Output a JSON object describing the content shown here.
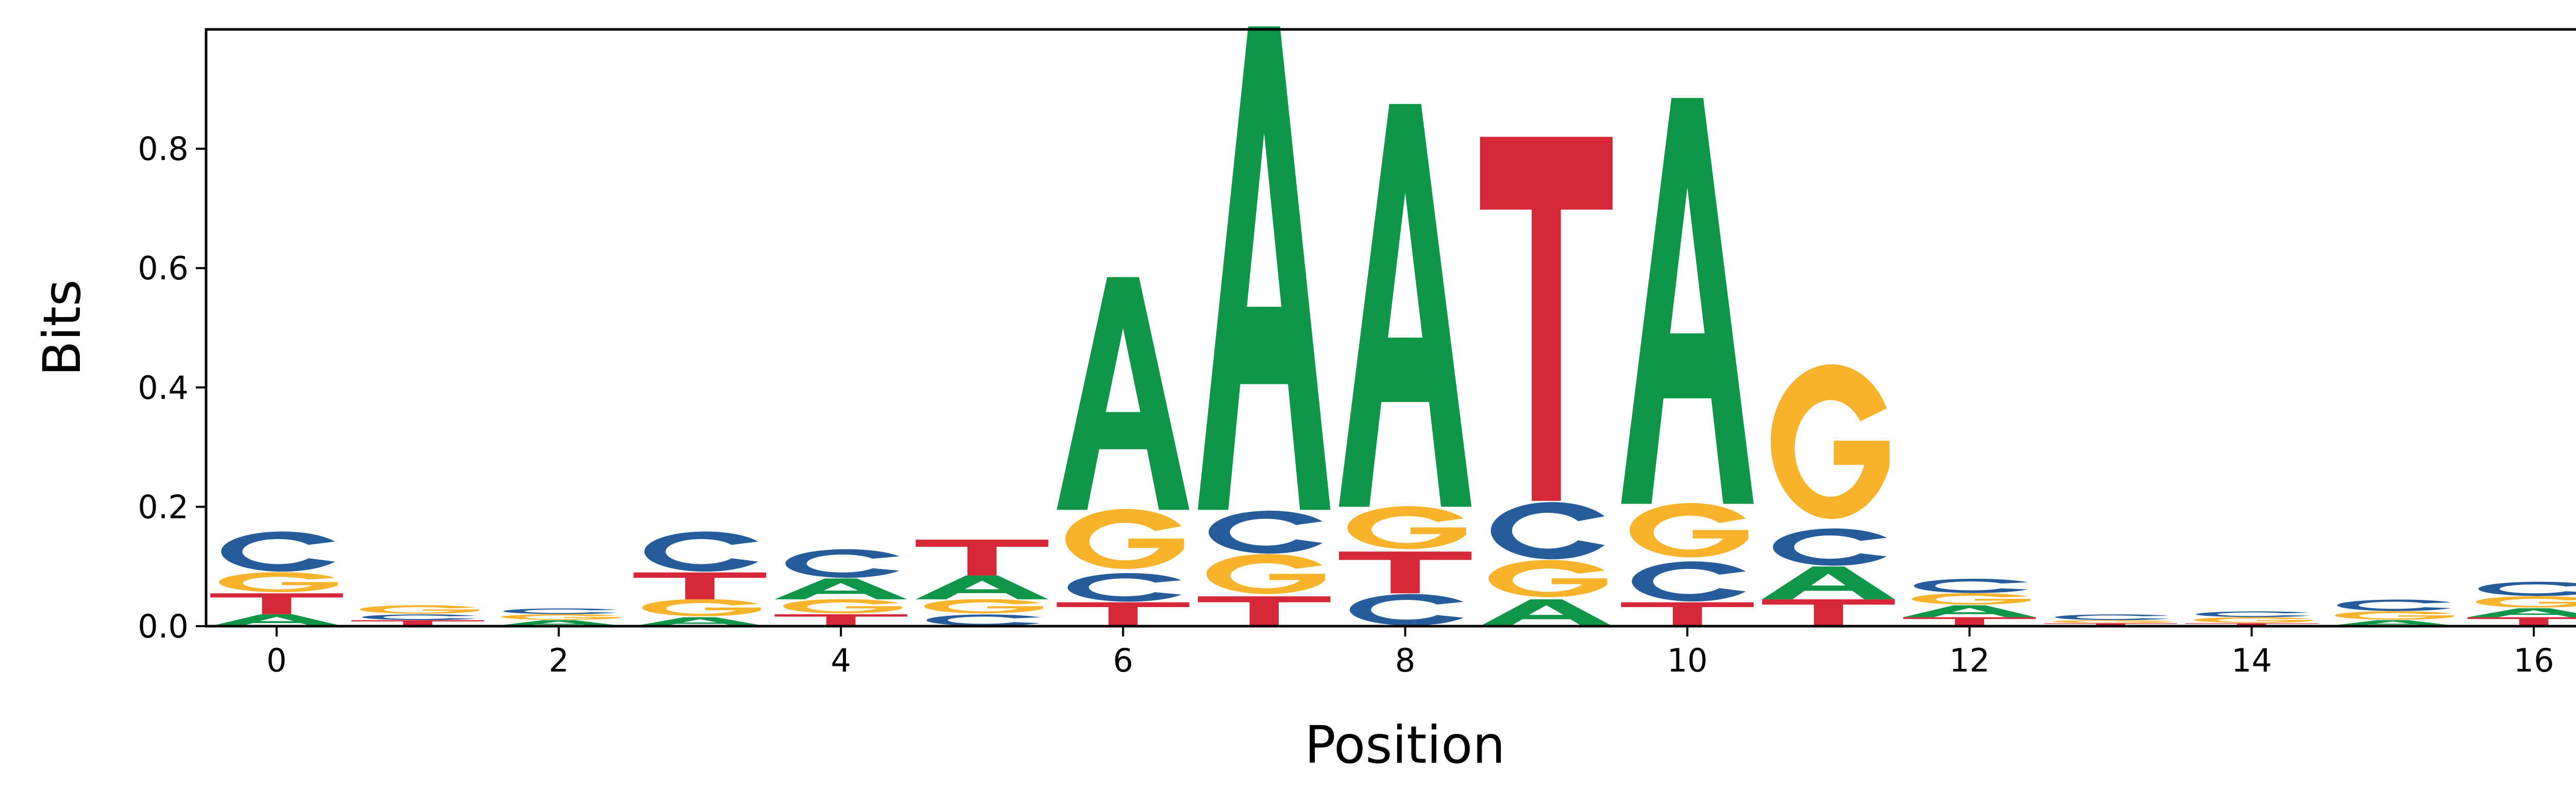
{
  "chart_data": {
    "type": "sequence_logo",
    "title": "",
    "xlabel": "Position",
    "ylabel": "Bits",
    "xlim": [
      -0.5,
      16.5
    ],
    "ylim": [
      0,
      1.0
    ],
    "x_ticks": [
      "0",
      "2",
      "4",
      "6",
      "8",
      "10",
      "12",
      "14",
      "16"
    ],
    "y_ticks": [
      "0.0",
      "0.2",
      "0.4",
      "0.6",
      "0.8"
    ],
    "grid": false,
    "colors": {
      "A": "#109648",
      "C": "#255C99",
      "G": "#F7B32B",
      "T": "#D62839"
    },
    "positions": [
      0,
      1,
      2,
      3,
      4,
      5,
      6,
      7,
      8,
      9,
      10,
      11,
      12,
      13,
      14,
      15,
      16
    ],
    "stacks": [
      [
        {
          "base": "A",
          "bits": 0.02
        },
        {
          "base": "T",
          "bits": 0.035
        },
        {
          "base": "G",
          "bits": 0.035
        },
        {
          "base": "C",
          "bits": 0.07
        }
      ],
      [
        {
          "base": "T",
          "bits": 0.01
        },
        {
          "base": "C",
          "bits": 0.01
        },
        {
          "base": "G",
          "bits": 0.015
        }
      ],
      [
        {
          "base": "A",
          "bits": 0.01
        },
        {
          "base": "G",
          "bits": 0.01
        },
        {
          "base": "C",
          "bits": 0.01
        }
      ],
      [
        {
          "base": "A",
          "bits": 0.015
        },
        {
          "base": "G",
          "bits": 0.03
        },
        {
          "base": "T",
          "bits": 0.045
        },
        {
          "base": "C",
          "bits": 0.07
        }
      ],
      [
        {
          "base": "T",
          "bits": 0.02
        },
        {
          "base": "G",
          "bits": 0.025
        },
        {
          "base": "A",
          "bits": 0.035
        },
        {
          "base": "C",
          "bits": 0.05
        }
      ],
      [
        {
          "base": "C",
          "bits": 0.02
        },
        {
          "base": "G",
          "bits": 0.025
        },
        {
          "base": "A",
          "bits": 0.04
        },
        {
          "base": "T",
          "bits": 0.06
        }
      ],
      [
        {
          "base": "T",
          "bits": 0.04
        },
        {
          "base": "C",
          "bits": 0.05
        },
        {
          "base": "G",
          "bits": 0.105
        },
        {
          "base": "A",
          "bits": 0.39
        }
      ],
      [
        {
          "base": "T",
          "bits": 0.05
        },
        {
          "base": "G",
          "bits": 0.07
        },
        {
          "base": "C",
          "bits": 0.075
        },
        {
          "base": "A",
          "bits": 0.81
        }
      ],
      [
        {
          "base": "C",
          "bits": 0.055
        },
        {
          "base": "T",
          "bits": 0.07
        },
        {
          "base": "G",
          "bits": 0.075
        },
        {
          "base": "A",
          "bits": 0.675
        }
      ],
      [
        {
          "base": "A",
          "bits": 0.045
        },
        {
          "base": "G",
          "bits": 0.065
        },
        {
          "base": "C",
          "bits": 0.1
        },
        {
          "base": "T",
          "bits": 0.61
        }
      ],
      [
        {
          "base": "T",
          "bits": 0.04
        },
        {
          "base": "C",
          "bits": 0.07
        },
        {
          "base": "G",
          "bits": 0.095
        },
        {
          "base": "A",
          "bits": 0.68
        }
      ],
      [
        {
          "base": "T",
          "bits": 0.045
        },
        {
          "base": "A",
          "bits": 0.055
        },
        {
          "base": "C",
          "bits": 0.065
        },
        {
          "base": "G",
          "bits": 0.27
        }
      ],
      [
        {
          "base": "T",
          "bits": 0.015
        },
        {
          "base": "A",
          "bits": 0.02
        },
        {
          "base": "G",
          "bits": 0.02
        },
        {
          "base": "C",
          "bits": 0.025
        }
      ],
      [
        {
          "base": "T",
          "bits": 0.005
        },
        {
          "base": "G",
          "bits": 0.005
        },
        {
          "base": "C",
          "bits": 0.01
        }
      ],
      [
        {
          "base": "T",
          "bits": 0.005
        },
        {
          "base": "G",
          "bits": 0.01
        },
        {
          "base": "C",
          "bits": 0.01
        }
      ],
      [
        {
          "base": "A",
          "bits": 0.01
        },
        {
          "base": "G",
          "bits": 0.015
        },
        {
          "base": "C",
          "bits": 0.02
        }
      ],
      [
        {
          "base": "T",
          "bits": 0.015
        },
        {
          "base": "A",
          "bits": 0.015
        },
        {
          "base": "G",
          "bits": 0.02
        },
        {
          "base": "C",
          "bits": 0.025
        }
      ]
    ]
  }
}
